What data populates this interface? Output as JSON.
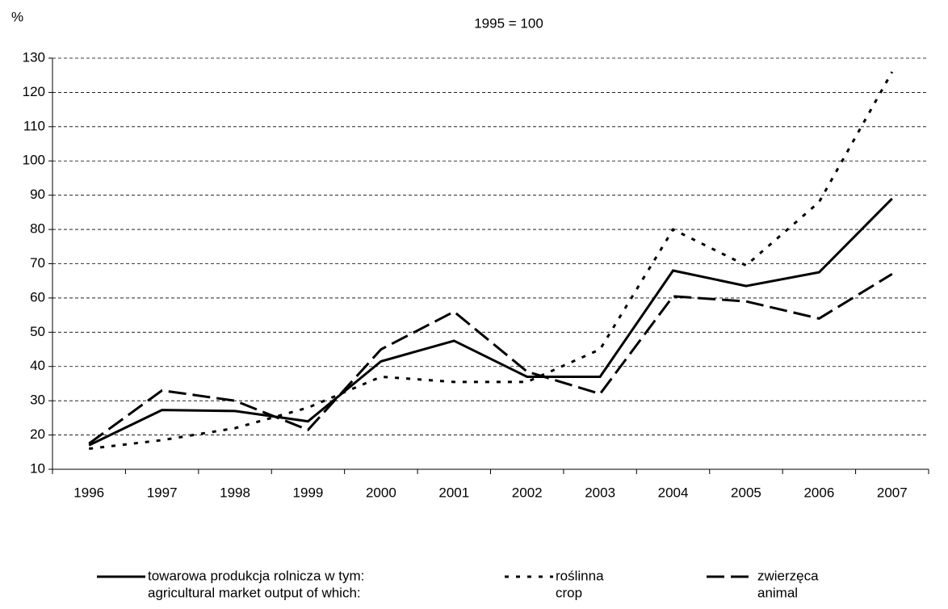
{
  "chart_data": {
    "type": "line",
    "unit_label": "%",
    "subtitle": "1995 = 100",
    "categories": [
      "1996",
      "1997",
      "1998",
      "1999",
      "2000",
      "2001",
      "2002",
      "2003",
      "2004",
      "2005",
      "2006",
      "2007"
    ],
    "ylim": [
      10,
      130
    ],
    "yticks": [
      10,
      20,
      30,
      40,
      50,
      60,
      70,
      80,
      90,
      100,
      110,
      120,
      130
    ],
    "grid": true,
    "legend": "bottom",
    "series": [
      {
        "name": "towarowa produkcja rolnicza w tym:",
        "name_en": "agricultural market output of which:",
        "color": "#000000",
        "dash": "solid",
        "values": [
          17,
          27.3,
          27,
          24,
          41.5,
          47.5,
          37,
          37,
          68,
          63.5,
          67.5,
          89
        ]
      },
      {
        "name": "roślinna",
        "name_en": "crop",
        "color": "#000000",
        "dash": "dotted",
        "values": [
          16,
          18.5,
          22,
          28,
          37,
          35.5,
          35.5,
          45,
          80,
          69.5,
          88,
          126
        ]
      },
      {
        "name": "zwierzęca",
        "name_en": "animal",
        "color": "#000000",
        "dash": "dashed",
        "values": [
          17.5,
          33,
          30,
          21.5,
          45,
          56,
          38.5,
          32,
          60.5,
          59,
          54,
          67
        ]
      }
    ]
  }
}
